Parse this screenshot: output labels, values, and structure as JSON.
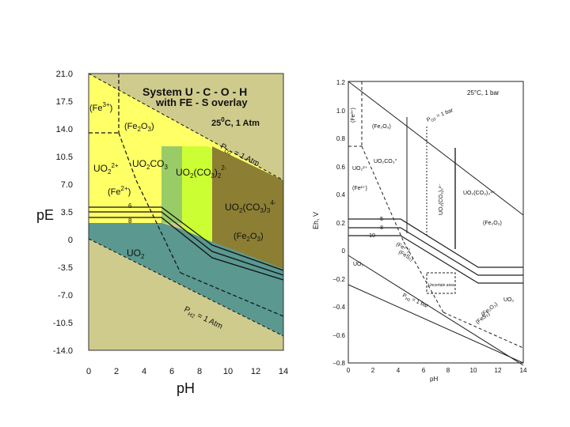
{
  "left": {
    "title_line1": "System U - C - O - H",
    "title_line2": "with FE - S overlay",
    "conditions_main": "25",
    "conditions_deg": "0",
    "conditions_rest": "C, 1 Atm",
    "yaxis_label": "pE",
    "xaxis_label": "pH",
    "yticks": [
      "21.0",
      "17.5",
      "14.0",
      "10.5",
      "7.0",
      "3.5",
      "0",
      "-3.5",
      "-7.0",
      "-10.5",
      "-14.0"
    ],
    "xticks": [
      "0",
      "2",
      "4",
      "6",
      "8",
      "10",
      "12",
      "14"
    ],
    "species": {
      "fe3": "(Fe",
      "fe3_sup": "3+",
      "fe2o3_top": "(Fe",
      "uo2_2plus": "UO",
      "uo2co3": "UO",
      "uo2co3_2": "UO",
      "uo2co3_3": "UO",
      "fe2plus": "(Fe",
      "fe2plus_sup": "2+",
      "fe2o3_bottom": "(Fe",
      "uo2": "UO",
      "po2": "P",
      "po2_rest": " = 1 Atm",
      "ph2": "P",
      "ph2_rest": " = 1 Atm",
      "line_6": "6",
      "line_8": "8"
    },
    "colors": {
      "stability_field": "#cfcb8c",
      "uo2_2plus_field": "#ffff66",
      "uo2co3_field": "#99cc66",
      "uo2co3_2_field": "#ccff33",
      "uo2co3_3_field": "#8c7f33",
      "uo2_field": "#5a9890"
    }
  },
  "right": {
    "conditions": "25°C, 1 bar",
    "yaxis_label": "Eh, V",
    "xaxis_label": "pH",
    "yticks": [
      "1.2",
      "1.0",
      "0.8",
      "0.6",
      "0.4",
      "0.2",
      "0",
      "−0.2",
      "−0.4",
      "−0.6",
      "−0.8"
    ],
    "xticks": [
      "0",
      "2",
      "4",
      "6",
      "8",
      "10",
      "12",
      "14"
    ],
    "species": {
      "fe3": "(Fe³⁺)",
      "fe2o3_top": "(Fe₂O₃)",
      "po2": "P",
      "po2_rest": " = 1 bar",
      "uo2co3": "UO₂CO₃°",
      "uo2_2plus": "UO₂²⁺",
      "fe2plus": "(Fe²⁺)",
      "uo2co3_2": "UO₂(CO₃)₂²⁻",
      "uo2co3_3": "UO₂(CO₃)₃⁴⁻",
      "fe2o3_right": "(Fe₂O₃)",
      "line_5": "−5",
      "line_8": "−8",
      "line_10": "−10",
      "fe2plus_low": "(Fe²⁺)",
      "fes2": "(FeS₂)",
      "uncertain": "Uncertain area",
      "uo2": "UO₂",
      "uo2_right": "UO₂",
      "fe2o3_low": "(Fe₂O₃)",
      "fes2_low": "(FeS₂)",
      "ph2": "P",
      "ph2_rest": " = 1 bar"
    }
  }
}
